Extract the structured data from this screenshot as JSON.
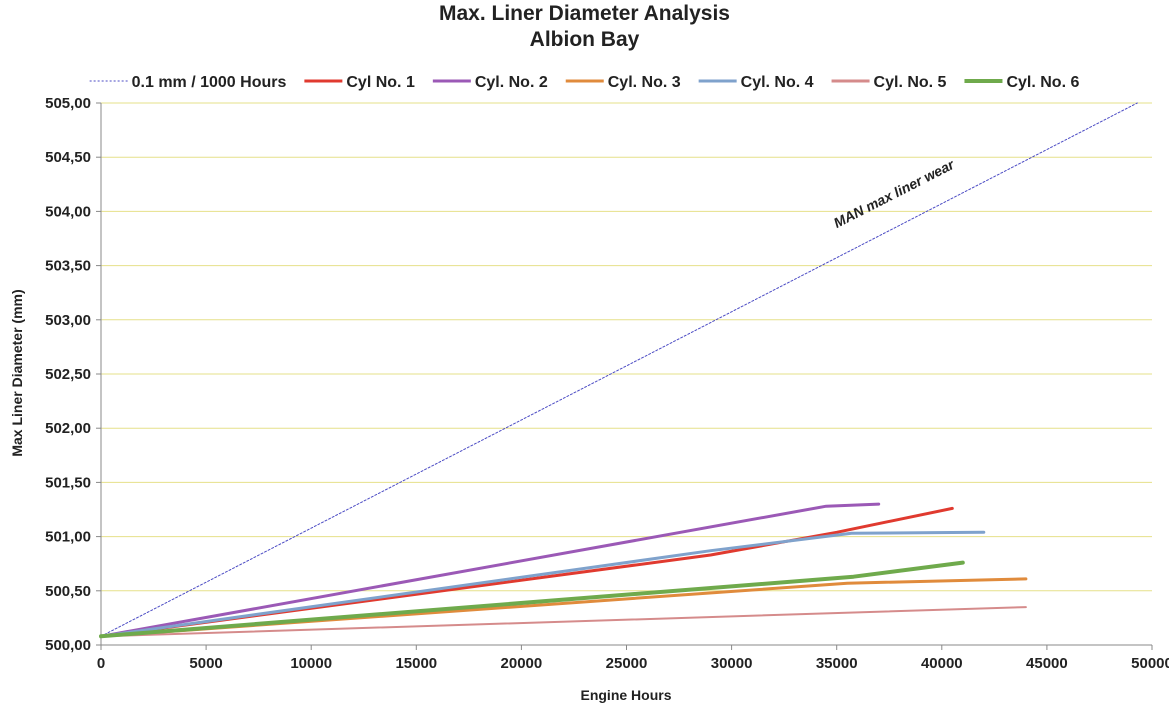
{
  "chart_data": {
    "type": "line",
    "title": "Max. Liner Diameter Analysis",
    "subtitle": "Albion Bay",
    "xlabel": "Engine Hours",
    "ylabel": "Max Liner Diameter (mm)",
    "xlim": [
      0,
      50000
    ],
    "ylim": [
      500.0,
      505.0
    ],
    "x_ticks": [
      "0",
      "5000",
      "10000",
      "15000",
      "20000",
      "25000",
      "30000",
      "35000",
      "40000",
      "45000",
      "50000"
    ],
    "y_ticks": [
      "500,00",
      "500,50",
      "501,00",
      "501,50",
      "502,00",
      "502,50",
      "503,00",
      "503,50",
      "504,00",
      "504,50",
      "505,00"
    ],
    "grid": "horizontal",
    "legend_position": "top",
    "annotation": "MAN max liner wear",
    "series": [
      {
        "name": "0.1 mm / 1000 Hours",
        "color": "#4b4bc4",
        "dashed": true,
        "width": 1,
        "points": [
          [
            0,
            500.08
          ],
          [
            49300,
            505.0
          ]
        ]
      },
      {
        "name": "Cyl No. 1",
        "color": "#e03a2f",
        "width": 3,
        "points": [
          [
            0,
            500.08
          ],
          [
            29000,
            500.83
          ],
          [
            35000,
            501.04
          ],
          [
            40500,
            501.26
          ]
        ]
      },
      {
        "name": "Cyl. No. 2",
        "color": "#9b59b6",
        "width": 3,
        "points": [
          [
            0,
            500.08
          ],
          [
            34500,
            501.28
          ],
          [
            37000,
            501.3
          ]
        ]
      },
      {
        "name": "Cyl. No. 3",
        "color": "#e08b3c",
        "width": 3,
        "points": [
          [
            0,
            500.08
          ],
          [
            35500,
            500.57
          ],
          [
            44000,
            500.61
          ]
        ]
      },
      {
        "name": "Cyl. No. 4",
        "color": "#7fa2cc",
        "width": 3,
        "points": [
          [
            0,
            500.08
          ],
          [
            29000,
            500.87
          ],
          [
            35700,
            501.03
          ],
          [
            42000,
            501.04
          ]
        ]
      },
      {
        "name": "Cyl. No. 5",
        "color": "#d58b8b",
        "width": 2,
        "points": [
          [
            0,
            500.08
          ],
          [
            44000,
            500.35
          ]
        ]
      },
      {
        "name": "Cyl. No. 6",
        "color": "#6faa4c",
        "width": 4,
        "points": [
          [
            0,
            500.08
          ],
          [
            35800,
            500.63
          ],
          [
            41000,
            500.76
          ]
        ]
      }
    ]
  }
}
